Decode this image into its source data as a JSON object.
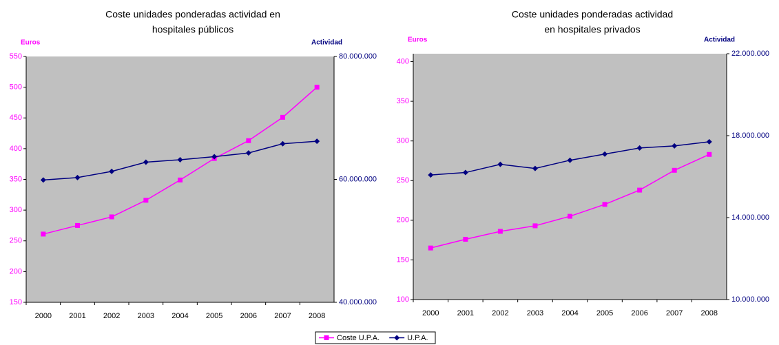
{
  "chart_data": [
    {
      "type": "line",
      "title": [
        "Coste unidades ponderadas actividad en",
        "hospitales públicos"
      ],
      "ylabel": "Euros",
      "y2label": "Actividad",
      "categories": [
        "2000",
        "2001",
        "2002",
        "2003",
        "2004",
        "2005",
        "2006",
        "2007",
        "2008"
      ],
      "series": [
        {
          "name": "Coste U.P.A.",
          "color": "#ff00ff",
          "marker": "square",
          "values": [
            261,
            275,
            289,
            316,
            349,
            384,
            413,
            451,
            500
          ]
        },
        {
          "name": "U.P.A.",
          "color": "#000080",
          "marker": "diamond",
          "axis": "y2",
          "values": [
            59900000,
            60300000,
            61300000,
            62800000,
            63200000,
            63700000,
            64300000,
            65800000,
            66200000
          ]
        }
      ],
      "ylim": [
        150,
        550
      ],
      "yticks": [
        150,
        200,
        250,
        300,
        350,
        400,
        450,
        500,
        550
      ],
      "y2lim": [
        40000000,
        80000000
      ],
      "y2ticks": [
        {
          "value": 40000000,
          "label": "40.000.000"
        },
        {
          "value": 60000000,
          "label": "60.000.000"
        },
        {
          "value": 80000000,
          "label": "80.000.000"
        }
      ],
      "background": "#c0c0c0"
    },
    {
      "type": "line",
      "title": [
        "Coste unidades ponderadas actividad",
        "en hospitales privados"
      ],
      "ylabel": "Euros",
      "y2label": "Actividad",
      "categories": [
        "2000",
        "2001",
        "2002",
        "2003",
        "2004",
        "2005",
        "2006",
        "2007",
        "2008"
      ],
      "series": [
        {
          "name": "Coste U.P.A.",
          "color": "#ff00ff",
          "marker": "square",
          "values": [
            165,
            176,
            186,
            193,
            205,
            220,
            238,
            263,
            283
          ]
        },
        {
          "name": "U.P.A.",
          "color": "#000080",
          "marker": "diamond",
          "axis": "y2",
          "values": [
            16080000,
            16200000,
            16600000,
            16400000,
            16800000,
            17100000,
            17400000,
            17500000,
            17700000
          ]
        }
      ],
      "ylim": [
        100,
        410
      ],
      "yticks": [
        100,
        150,
        200,
        250,
        300,
        350,
        400
      ],
      "y2lim": [
        10000000,
        22000000
      ],
      "y2ticks": [
        {
          "value": 10000000,
          "label": "10.000.000"
        },
        {
          "value": 14000000,
          "label": "14.000.000"
        },
        {
          "value": 18000000,
          "label": "18.000.000"
        },
        {
          "value": 22000000,
          "label": "22.000.000"
        }
      ],
      "background": "#c0c0c0"
    }
  ]
}
